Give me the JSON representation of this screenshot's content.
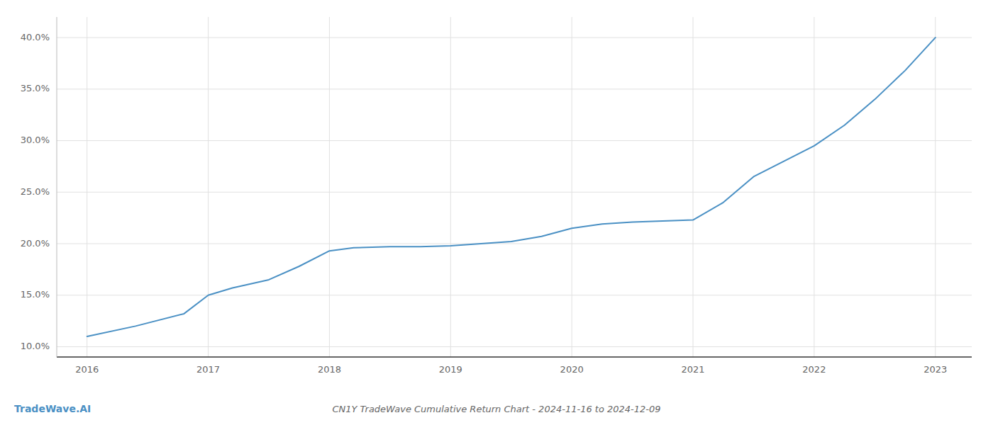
{
  "chart_data": {
    "type": "line",
    "title": "CN1Y TradeWave Cumulative Return Chart - 2024-11-16 to 2024-12-09",
    "annotations": [
      "TradeWave.AI"
    ],
    "color": "#4a90c4",
    "x": [
      2016.0,
      2016.4,
      2016.8,
      2017.0,
      2017.2,
      2017.5,
      2017.75,
      2018.0,
      2018.2,
      2018.5,
      2018.75,
      2019.0,
      2019.25,
      2019.5,
      2019.75,
      2020.0,
      2020.25,
      2020.5,
      2020.75,
      2021.0,
      2021.25,
      2021.5,
      2021.75,
      2022.0,
      2022.25,
      2022.5,
      2022.75,
      2023.0
    ],
    "values": [
      0.11,
      0.12,
      0.132,
      0.15,
      0.157,
      0.165,
      0.178,
      0.193,
      0.196,
      0.197,
      0.197,
      0.198,
      0.2,
      0.202,
      0.207,
      0.215,
      0.219,
      0.221,
      0.222,
      0.223,
      0.24,
      0.265,
      0.28,
      0.295,
      0.315,
      0.34,
      0.368,
      0.4
    ],
    "xlim": [
      2015.75,
      2023.3
    ],
    "ylim": [
      0.09,
      0.42
    ],
    "xticks": [
      2016,
      2017,
      2018,
      2019,
      2020,
      2021,
      2022,
      2023
    ],
    "yticks": [
      {
        "value": 0.1,
        "label": "10.0%"
      },
      {
        "value": 0.15,
        "label": "15.0%"
      },
      {
        "value": 0.2,
        "label": "20.0%"
      },
      {
        "value": 0.25,
        "label": "25.0%"
      },
      {
        "value": 0.3,
        "label": "30.0%"
      },
      {
        "value": 0.35,
        "label": "35.0%"
      },
      {
        "value": 0.4,
        "label": "40.0%"
      }
    ],
    "grid": true
  }
}
